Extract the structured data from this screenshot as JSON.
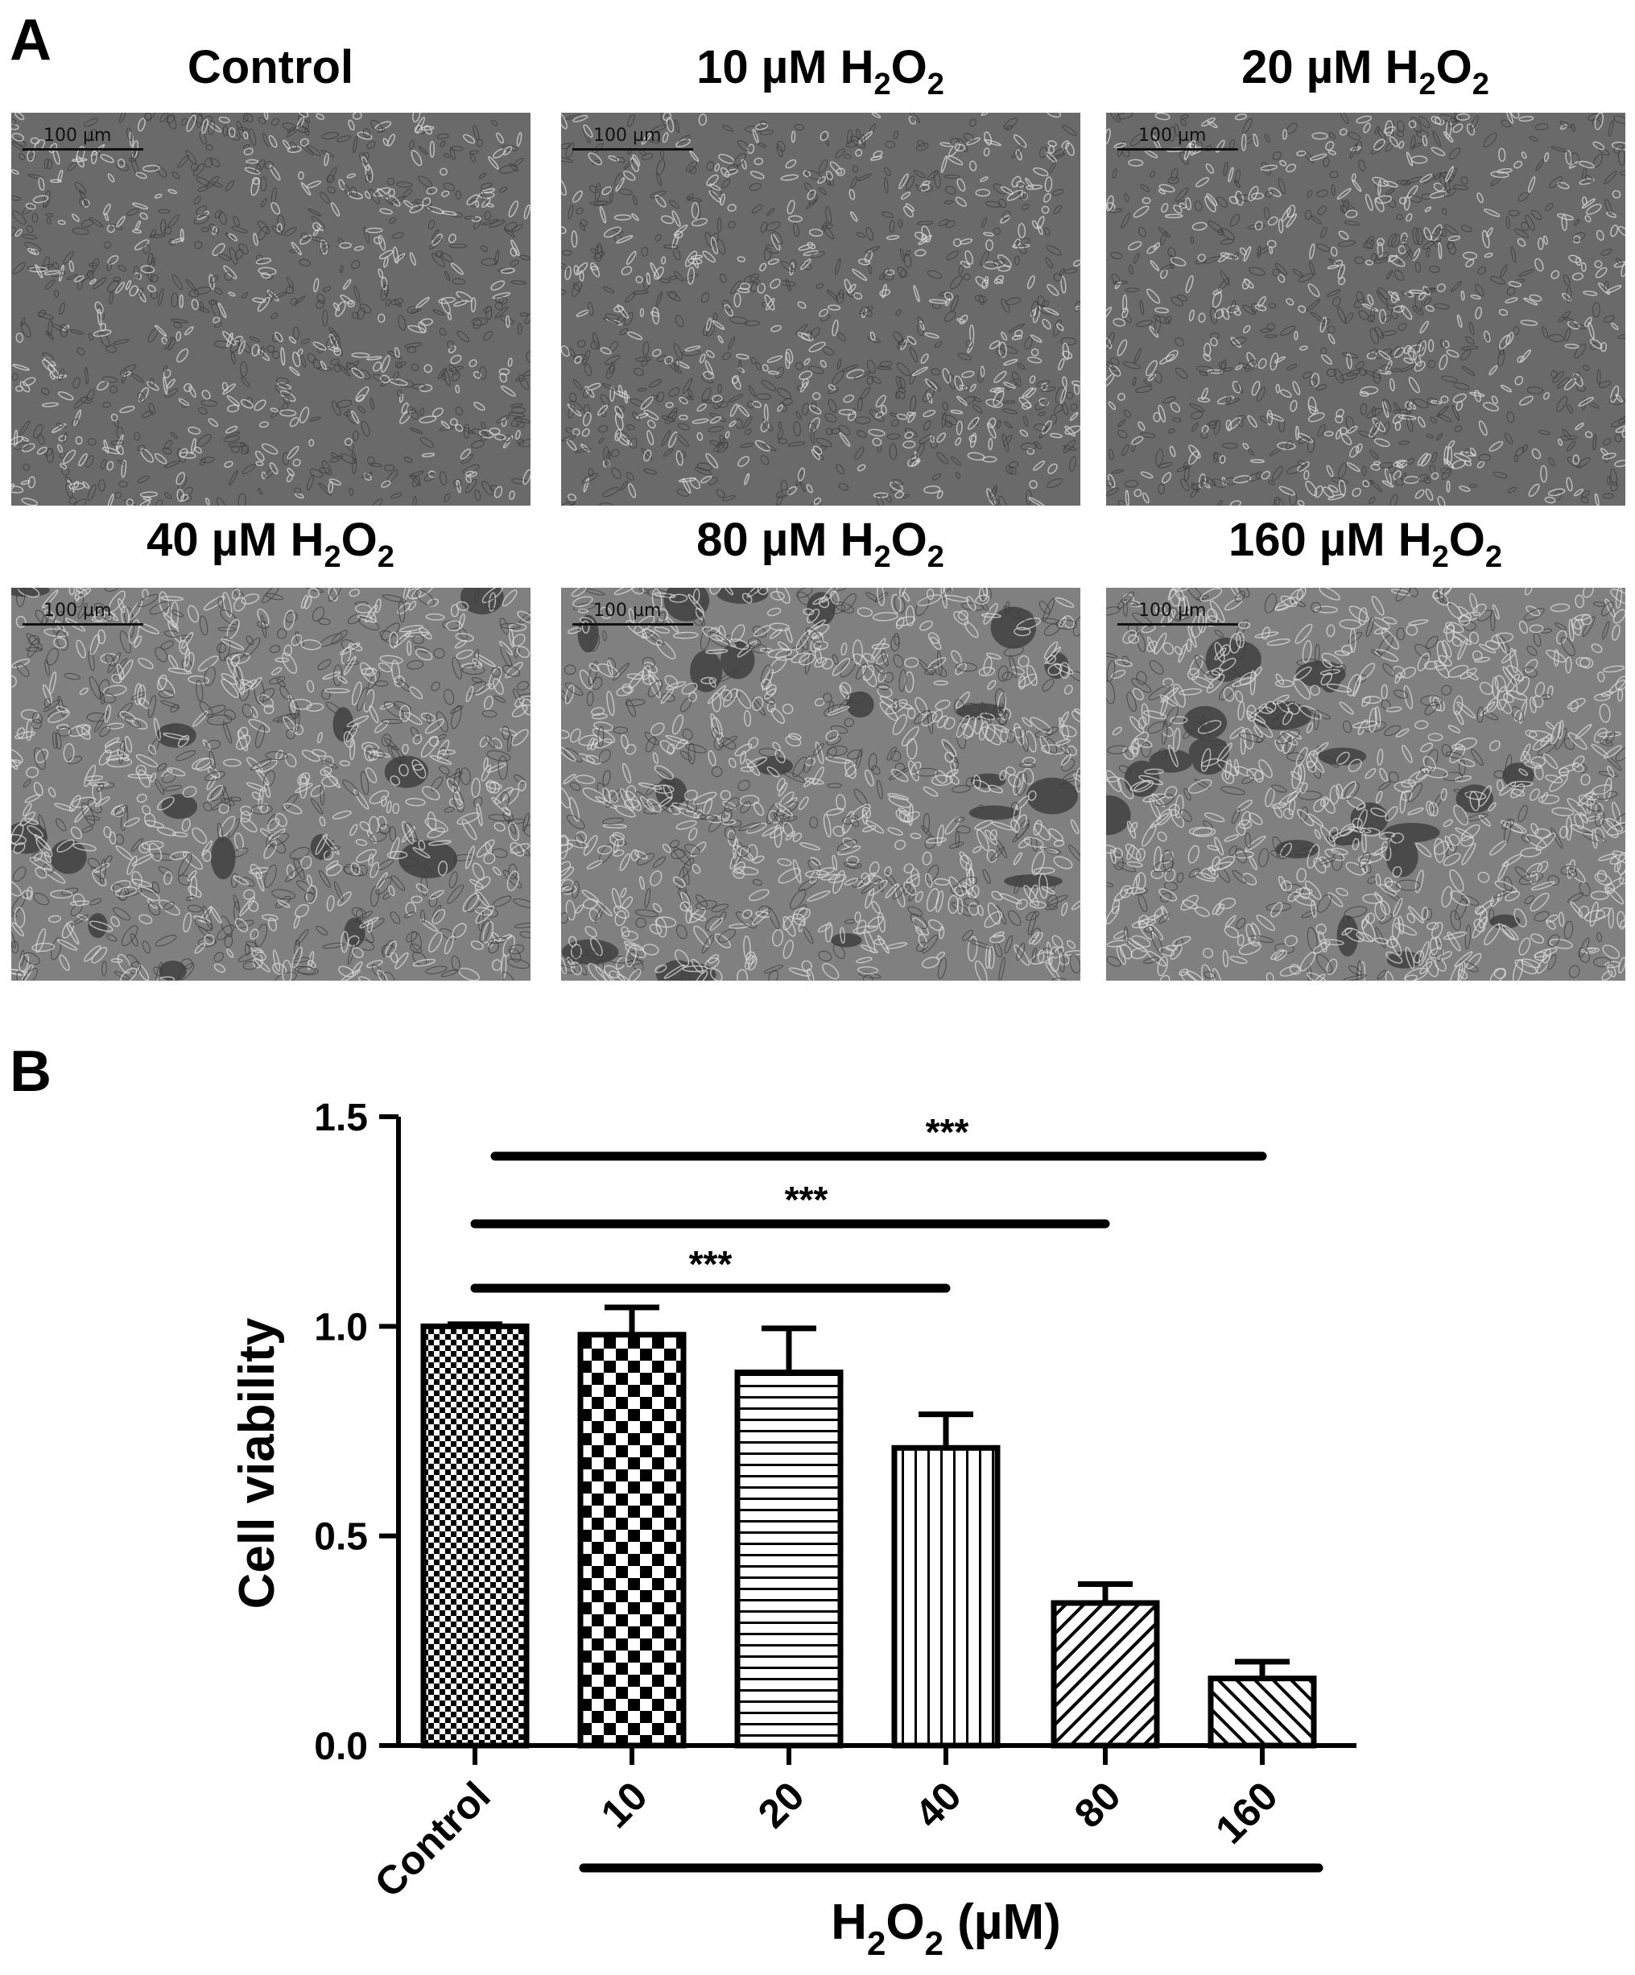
{
  "panel_a": {
    "label": "A",
    "images": [
      {
        "title": "Control",
        "sub_parts": [],
        "scale_label": "100 µm",
        "density": 0.25
      },
      {
        "title": "10 µM H",
        "sub_parts": [
          "2",
          "O",
          "2"
        ],
        "scale_label": "100 µm",
        "density": 0.3
      },
      {
        "title": "20 µM H",
        "sub_parts": [
          "2",
          "O",
          "2"
        ],
        "scale_label": "100 µm",
        "density": 0.35
      },
      {
        "title": "40 µM H",
        "sub_parts": [
          "2",
          "O",
          "2"
        ],
        "scale_label": "100 µm",
        "density": 0.55
      },
      {
        "title": "80 µM H",
        "sub_parts": [
          "2",
          "O",
          "2"
        ],
        "scale_label": "100 µm",
        "density": 0.75
      },
      {
        "title": "160 µM H",
        "sub_parts": [
          "2",
          "O",
          "2"
        ],
        "scale_label": "100 µm",
        "density": 0.85
      }
    ]
  },
  "panel_b": {
    "label": "B"
  },
  "chart_data": {
    "type": "bar",
    "ylabel": "Cell viability",
    "xlabel_main": "H",
    "xlabel_sub1": "2",
    "xlabel_mid": "O",
    "xlabel_sub2": "2",
    "xlabel_tail": " (µM)",
    "categories": [
      "Control",
      "10",
      "20",
      "40",
      "80",
      "160"
    ],
    "values": [
      1.0,
      0.98,
      0.89,
      0.71,
      0.34,
      0.16
    ],
    "errors": [
      0.005,
      0.065,
      0.105,
      0.08,
      0.045,
      0.04
    ],
    "patterns": [
      "fine-checker",
      "checker",
      "horizontal-lines",
      "vertical-lines",
      "diagonal-right",
      "diagonal-left"
    ],
    "ylim": [
      0,
      1.5
    ],
    "yticks": [
      "0.0",
      "0.5",
      "1.0",
      "1.5"
    ],
    "significance": [
      {
        "from": "Control",
        "to": "40",
        "label": "***"
      },
      {
        "from": "Control",
        "to": "80",
        "label": "***"
      },
      {
        "from": "Control",
        "to": "160",
        "label": "***"
      }
    ]
  }
}
